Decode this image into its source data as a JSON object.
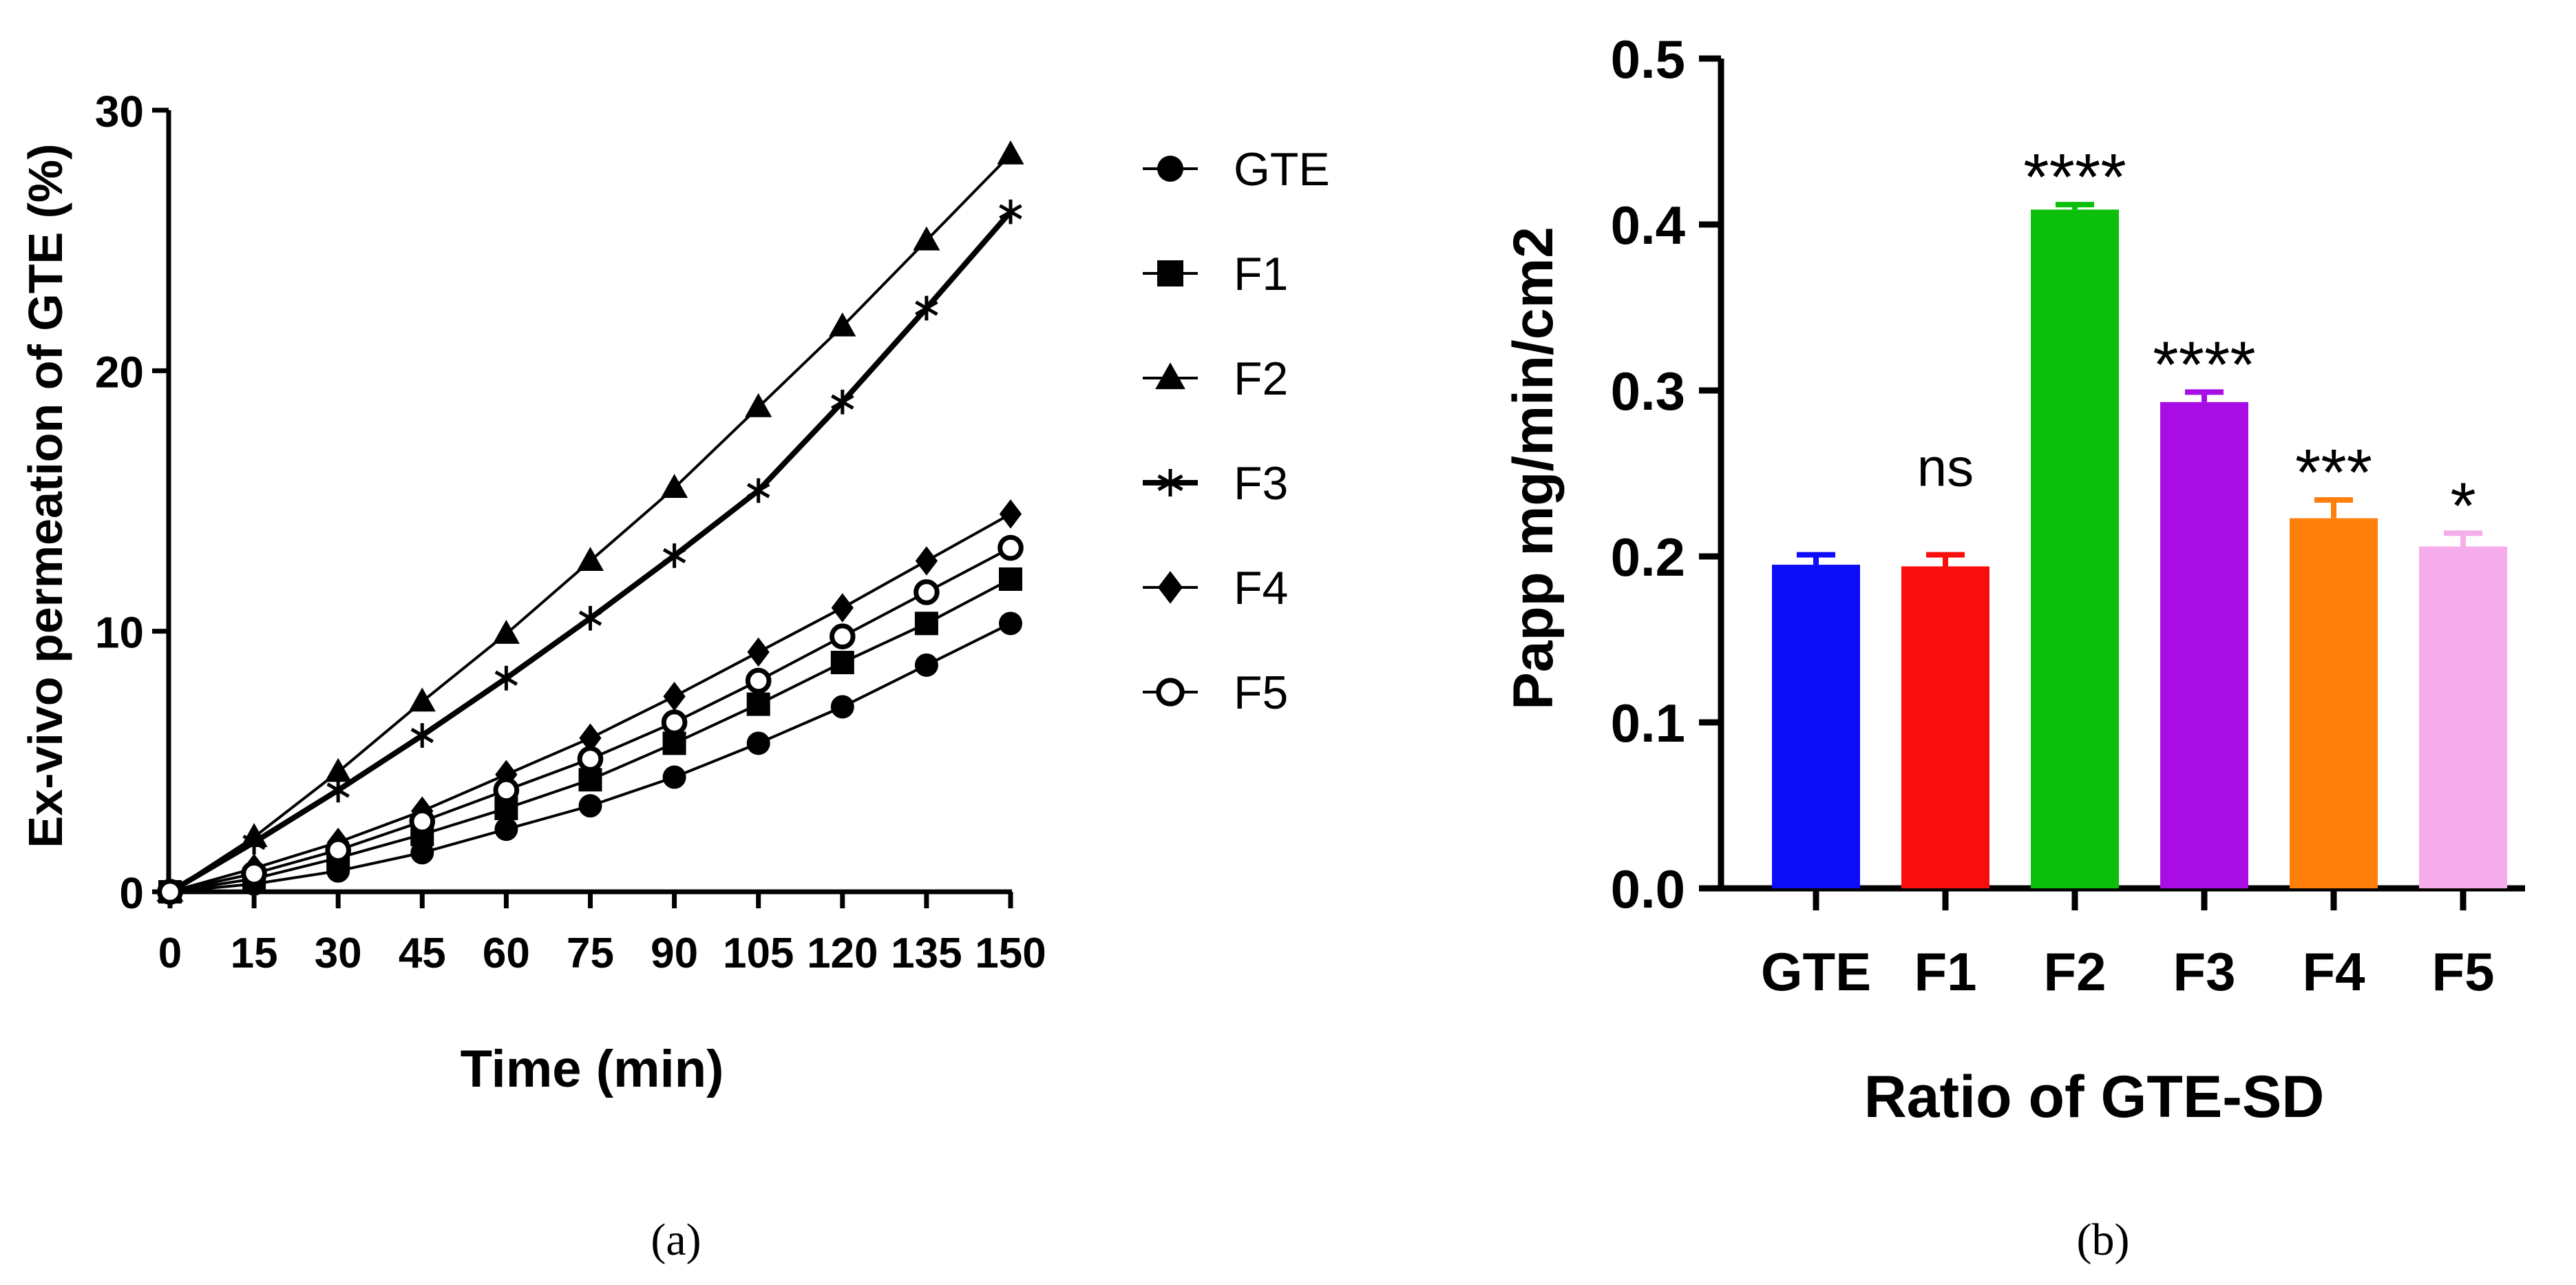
{
  "chart_data": [
    {
      "type": "line",
      "panel_label": "(a)",
      "xlabel": "Time (min)",
      "ylabel": "Ex-vivo permeation of GTE (%)",
      "x": [
        0,
        15,
        30,
        45,
        60,
        75,
        90,
        105,
        120,
        135,
        150
      ],
      "x_tick_labels": [
        "0",
        "15",
        "30",
        "45",
        "60",
        "75",
        "90",
        "105",
        "120",
        "135",
        "150"
      ],
      "y_ticks": [
        0,
        10,
        20,
        30
      ],
      "y_tick_labels": [
        "0",
        "10",
        "20",
        "30"
      ],
      "xlim": [
        0,
        150
      ],
      "ylim": [
        0,
        30
      ],
      "legend_position": "right",
      "series": [
        {
          "name": "GTE",
          "marker": "circle",
          "values": [
            0,
            0.3,
            0.8,
            1.5,
            2.4,
            3.3,
            4.4,
            5.7,
            7.1,
            8.7,
            10.3
          ]
        },
        {
          "name": "F1",
          "marker": "square",
          "values": [
            0,
            0.5,
            1.3,
            2.2,
            3.2,
            4.3,
            5.7,
            7.2,
            8.8,
            10.3,
            12.0
          ]
        },
        {
          "name": "F2",
          "marker": "triangle",
          "values": [
            0,
            2.1,
            4.6,
            7.3,
            9.9,
            12.7,
            15.5,
            18.6,
            21.7,
            25.0,
            28.3
          ]
        },
        {
          "name": "F3",
          "marker": "star",
          "values": [
            0,
            1.9,
            3.9,
            6.0,
            8.2,
            10.5,
            12.9,
            15.4,
            18.8,
            22.4,
            26.1
          ]
        },
        {
          "name": "F4",
          "marker": "diamond",
          "values": [
            0,
            0.9,
            1.9,
            3.1,
            4.5,
            5.9,
            7.5,
            9.2,
            10.9,
            12.7,
            14.5
          ]
        },
        {
          "name": "F5",
          "marker": "open-circle",
          "values": [
            0,
            0.7,
            1.6,
            2.7,
            3.9,
            5.1,
            6.5,
            8.1,
            9.8,
            11.5,
            13.2
          ]
        }
      ]
    },
    {
      "type": "bar",
      "panel_label": "(b)",
      "xlabel": "Ratio of GTE-SD",
      "ylabel": "Papp mg/min/cm2",
      "categories": [
        "GTE",
        "F1",
        "F2",
        "F3",
        "F4",
        "F5"
      ],
      "values": [
        0.195,
        0.194,
        0.409,
        0.293,
        0.223,
        0.206
      ],
      "errors": [
        0.006,
        0.007,
        0.003,
        0.006,
        0.011,
        0.008
      ],
      "significance": [
        "",
        "ns",
        "****",
        "****",
        "***",
        "*"
      ],
      "colors": [
        "#0d0dfa",
        "#fa0d0d",
        "#0dbf0d",
        "#a80de6",
        "#ff7f0d",
        "#f5aeeb"
      ],
      "y_ticks": [
        0.0,
        0.1,
        0.2,
        0.3,
        0.4,
        0.5
      ],
      "y_tick_labels": [
        "0.0",
        "0.1",
        "0.2",
        "0.3",
        "0.4",
        "0.5"
      ],
      "ylim": [
        0,
        0.5
      ]
    }
  ]
}
